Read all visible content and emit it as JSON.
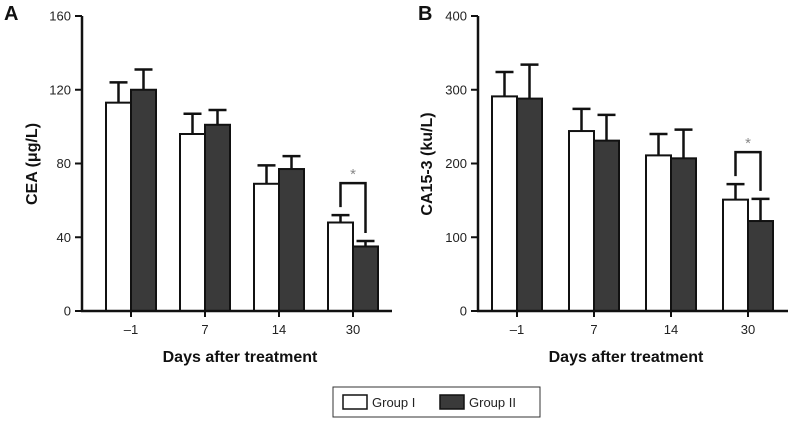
{
  "chart_data": [
    {
      "panel": "A",
      "type": "bar",
      "ylabel": "CEA (μg/L)",
      "xlabel": "Days after treatment",
      "categories": [
        "–1",
        "7",
        "14",
        "30"
      ],
      "ylim": [
        0,
        160
      ],
      "yticks": [
        "0",
        "40",
        "80",
        "120",
        "160"
      ],
      "series": [
        {
          "name": "Group I",
          "values": [
            113,
            96,
            69,
            48
          ],
          "errors": [
            11,
            11,
            10,
            4
          ]
        },
        {
          "name": "Group II",
          "values": [
            120,
            101,
            77,
            35
          ],
          "errors": [
            11,
            8,
            7,
            3
          ]
        }
      ],
      "significance": {
        "category": "30",
        "label": "*"
      }
    },
    {
      "panel": "B",
      "type": "bar",
      "ylabel": "CA15-3 (ku/L)",
      "xlabel": "Days after treatment",
      "categories": [
        "–1",
        "7",
        "14",
        "30"
      ],
      "ylim": [
        0,
        400
      ],
      "yticks": [
        "0",
        "100",
        "200",
        "300",
        "400"
      ],
      "series": [
        {
          "name": "Group I",
          "values": [
            291,
            244,
            211,
            151
          ],
          "errors": [
            33,
            30,
            29,
            21
          ]
        },
        {
          "name": "Group II",
          "values": [
            288,
            231,
            207,
            122
          ],
          "errors": [
            46,
            35,
            39,
            30
          ]
        }
      ],
      "significance": {
        "category": "30",
        "label": "*"
      }
    }
  ],
  "legend": {
    "items": [
      {
        "label": "Group I",
        "color": "#ffffff"
      },
      {
        "label": "Group II",
        "color": "#3a3a3a"
      }
    ]
  },
  "colors": {
    "group1": "#ffffff",
    "group2": "#3a3a3a",
    "axis": "#111111",
    "significance": "#666666"
  }
}
